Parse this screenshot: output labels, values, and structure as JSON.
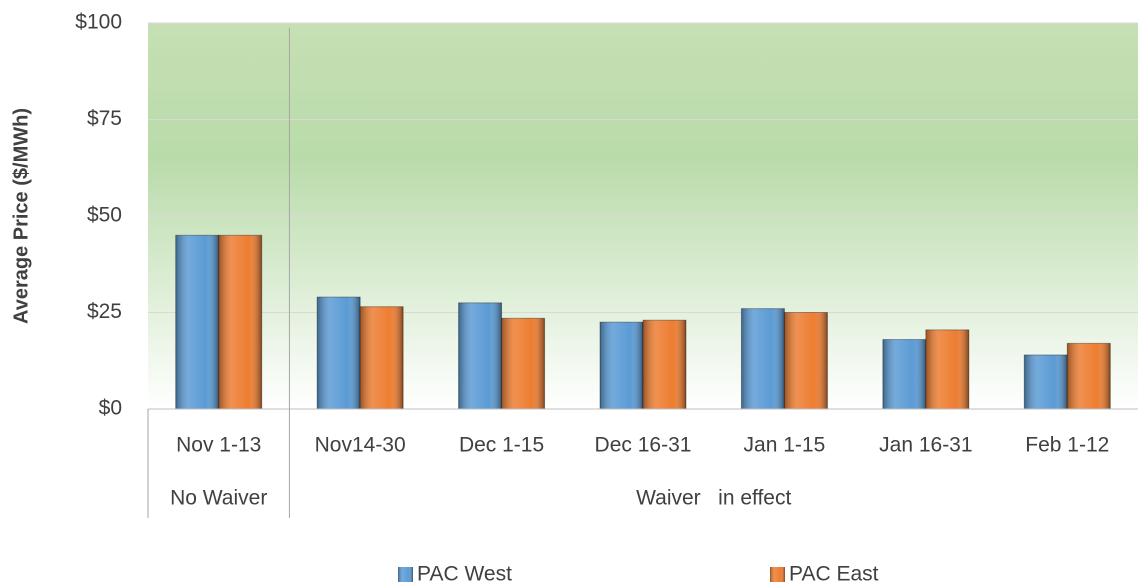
{
  "chart_data": {
    "type": "bar",
    "y_label": "Average Price ($/MWh)",
    "groups": [
      {
        "label": "No Waiver",
        "categories": [
          "Nov 1-13"
        ]
      },
      {
        "label": "Waiver   in effect",
        "categories": [
          "Nov14-30",
          "Dec 1-15",
          "Dec 16-31",
          "Jan 1-15",
          "Jan 16-31",
          "Feb 1-12"
        ]
      }
    ],
    "series": [
      {
        "name": "PAC West",
        "color": "#5b9bd5",
        "values": [
          45,
          29,
          27.5,
          22.5,
          26,
          18,
          14
        ]
      },
      {
        "name": "PAC East",
        "color": "#ed7d31",
        "values": [
          45,
          26.5,
          23.5,
          23,
          25,
          20.5,
          17
        ]
      }
    ],
    "ylim": [
      0,
      100
    ],
    "yticks": [
      {
        "value": 0,
        "label": "$0"
      },
      {
        "value": 25,
        "label": "$25"
      },
      {
        "value": 50,
        "label": "$50"
      },
      {
        "value": 75,
        "label": "$75"
      },
      {
        "value": 100,
        "label": "$100"
      }
    ],
    "grid": true,
    "legend": "bottom"
  }
}
